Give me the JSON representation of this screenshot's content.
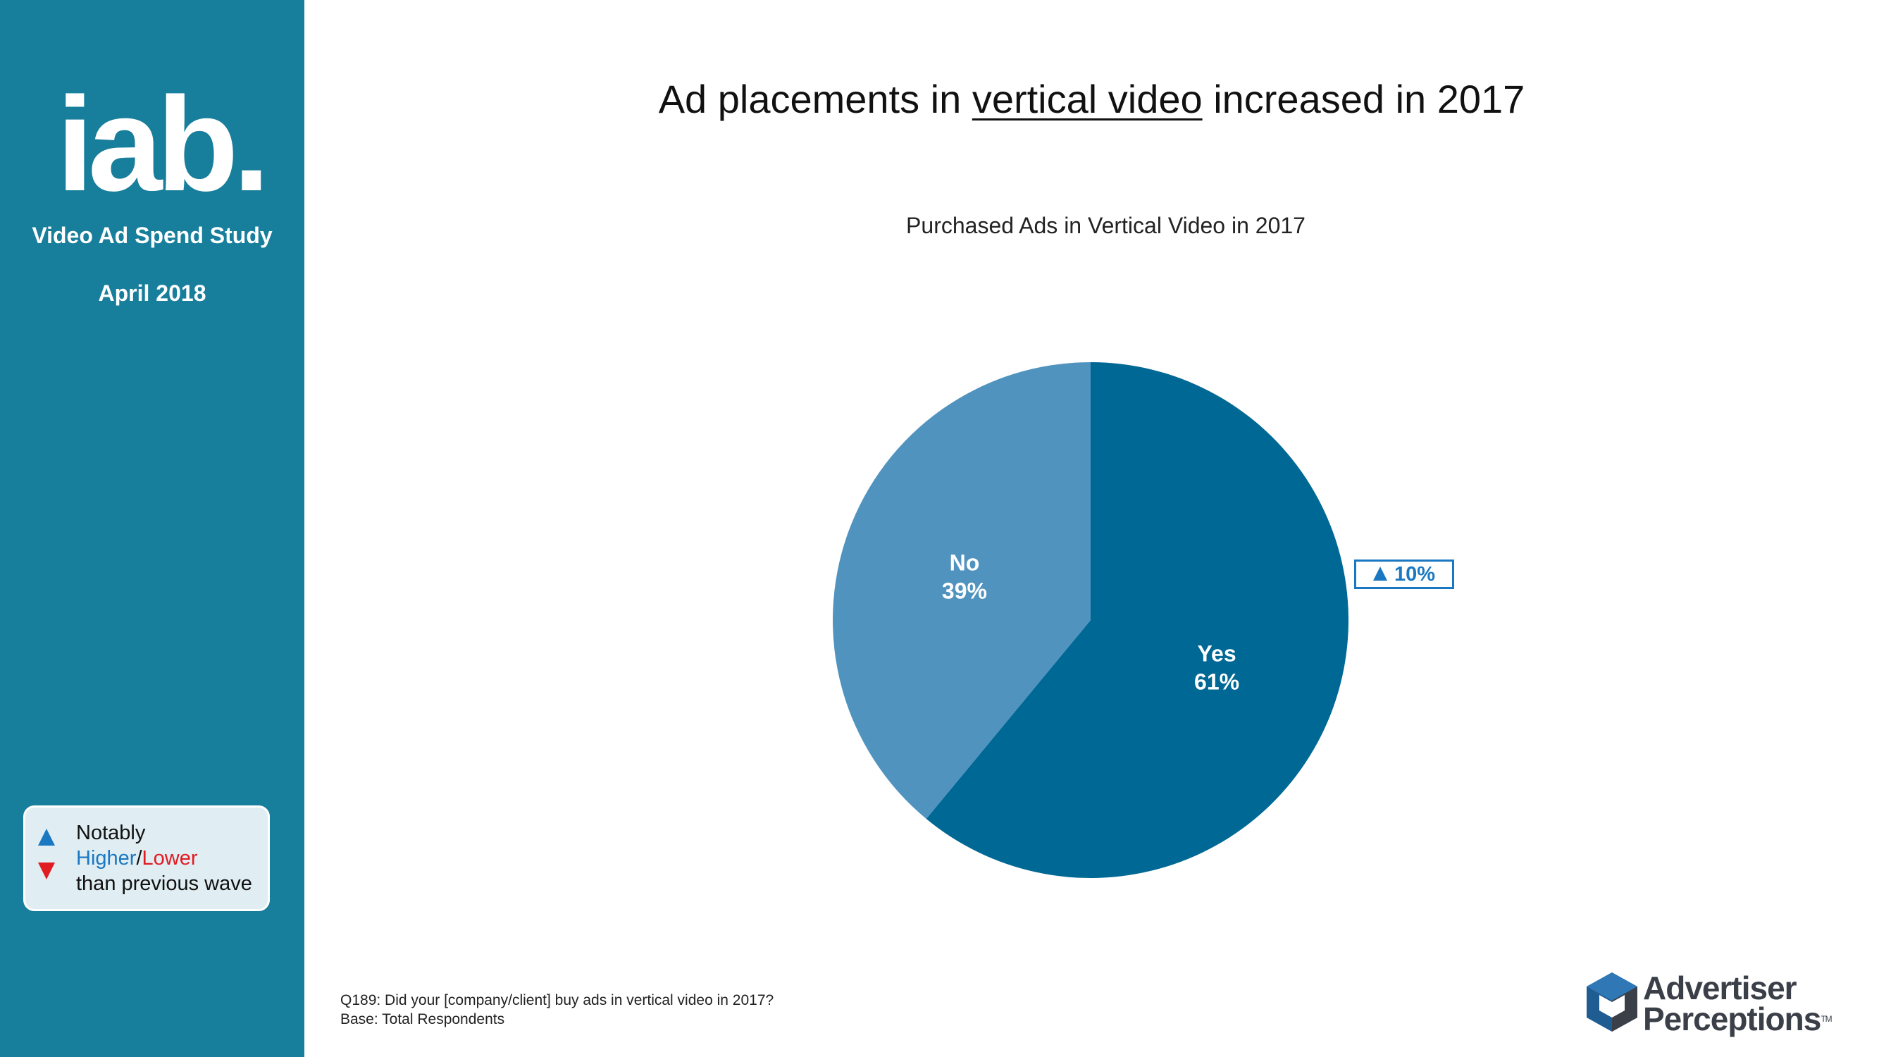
{
  "sidebar": {
    "logo_text": "iab.",
    "study": "Video Ad Spend Study",
    "date": "April 2018",
    "background": "#177E9C"
  },
  "legend": {
    "line1": "Notably",
    "higher": "Higher",
    "separator": "/",
    "lower": "Lower",
    "line3": "than previous wave",
    "higher_color": "#1A78C2",
    "lower_color": "#E01B22",
    "up_icon": "triangle-up-icon",
    "down_icon": "triangle-down-icon"
  },
  "title": {
    "prefix": "Ad placements in ",
    "underlined": "vertical video",
    "suffix": " increased in 2017"
  },
  "chart_data": {
    "type": "pie",
    "title": "Purchased Ads in Vertical Video in 2017",
    "slices": [
      {
        "label": "Yes",
        "value": 61,
        "value_label": "61%",
        "color": "#006894"
      },
      {
        "label": "No",
        "value": 39,
        "value_label": "39%",
        "color": "#5093BF"
      }
    ],
    "change_badge": {
      "text": "10%",
      "direction": "up",
      "slice": "Yes",
      "color": "#1A78C2"
    }
  },
  "footnote": {
    "question": "Q189: Did your [company/client] buy ads in vertical video in 2017?",
    "base": "Base: Total Respondents"
  },
  "brand": {
    "line1": "Advertiser",
    "line2": "Perceptions",
    "tm": "TM"
  }
}
